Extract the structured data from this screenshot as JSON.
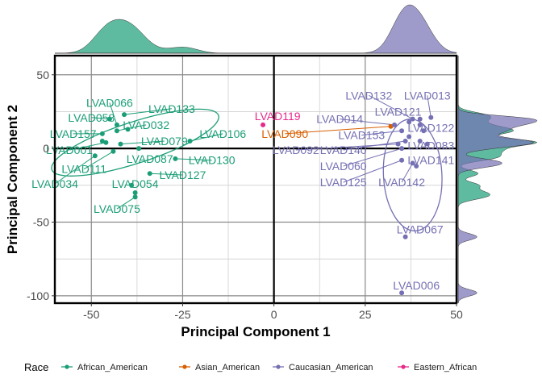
{
  "chart_data": {
    "type": "scatter",
    "xlabel": "Principal Component 1",
    "ylabel": "Principal Component 2",
    "xlim": [
      -60,
      50
    ],
    "ylim": [
      -105,
      63
    ],
    "x_ticks": [
      -50,
      -25,
      0,
      25,
      50
    ],
    "x_tick_labels": [
      "-50",
      "-25",
      "0",
      "25",
      "50"
    ],
    "y_ticks": [
      -100,
      -50,
      0,
      50
    ],
    "y_tick_labels": [
      "-100",
      "-50",
      "0",
      "50"
    ],
    "grid": true,
    "legend": {
      "title": "Race",
      "position": "bottom",
      "entries": [
        {
          "name": "African_American",
          "color": "#1b9e77"
        },
        {
          "name": "Asian_American",
          "color": "#d95f02"
        },
        {
          "name": "Caucasian_American",
          "color": "#7570b3"
        },
        {
          "name": "Eastern_African",
          "color": "#e7298a"
        }
      ]
    },
    "marginal_density": {
      "top": true,
      "right": true
    },
    "ellipses": [
      {
        "group": "African_American",
        "cx": -38,
        "cy": 4,
        "rx": 24,
        "ry": 14,
        "angle_deg": -18
      },
      {
        "group": "Caucasian_American",
        "cx": 38,
        "cy": -18,
        "rx": 8,
        "ry": 38,
        "angle_deg": -3
      }
    ],
    "series": [
      {
        "name": "African_American",
        "color": "#1b9e77",
        "points": [
          {
            "label": "LVAD066",
            "x": -43,
            "y": 16,
            "lx": -45,
            "ly": 31
          },
          {
            "label": "LVAD133",
            "x": -41,
            "y": 23,
            "lx": -28,
            "ly": 27
          },
          {
            "label": "LVAD058",
            "x": -45,
            "y": 20,
            "lx": -50,
            "ly": 21
          },
          {
            "label": "LVAD032",
            "x": -43,
            "y": 12,
            "lx": -35,
            "ly": 16
          },
          {
            "label": "LVAD157",
            "x": -47,
            "y": 10,
            "lx": -55,
            "ly": 10
          },
          {
            "label": "LVAD106",
            "x": -23,
            "y": 5,
            "lx": -14,
            "ly": 10
          },
          {
            "label": "LVAD079",
            "x": -42,
            "y": 3,
            "lx": -30,
            "ly": 5
          },
          {
            "label": "LVAD001",
            "x": -46,
            "y": 4,
            "lx": -56,
            "ly": -1
          },
          {
            "label": "LVAD087",
            "x": -37,
            "y": 0,
            "lx": -34,
            "ly": -7
          },
          {
            "label": "LVAD130",
            "x": -27,
            "y": -7,
            "lx": -17,
            "ly": -8
          },
          {
            "label": "LVAD111",
            "x": -44,
            "y": -2,
            "lx": -52,
            "ly": -14
          },
          {
            "label": "LVAD127",
            "x": -34,
            "y": -17,
            "lx": -25,
            "ly": -18
          },
          {
            "label": "LVAD034",
            "x": -49,
            "y": -5,
            "lx": -60,
            "ly": -24
          },
          {
            "label": "LVAD054",
            "x": -39,
            "y": -25,
            "lx": -38,
            "ly": -24
          },
          {
            "label": "LVAD075",
            "x": -38,
            "y": -33,
            "lx": -43,
            "ly": -41
          },
          {
            "label": "",
            "x": -40,
            "y": 13,
            "lx": null,
            "ly": null
          },
          {
            "label": "",
            "x": -47,
            "y": 5,
            "lx": null,
            "ly": null
          },
          {
            "label": "",
            "x": -38,
            "y": -30,
            "lx": null,
            "ly": null
          }
        ]
      },
      {
        "name": "Asian_American",
        "color": "#d95f02",
        "points": [
          {
            "label": "LVAD090",
            "x": 32,
            "y": 15,
            "lx": 3,
            "ly": 10
          }
        ]
      },
      {
        "name": "Caucasian_American",
        "color": "#7570b3",
        "points": [
          {
            "label": "LVAD132",
            "x": 38,
            "y": 20,
            "lx": 26,
            "ly": 36
          },
          {
            "label": "LVAD013",
            "x": 43,
            "y": 21,
            "lx": 42,
            "ly": 36
          },
          {
            "label": "LVAD121",
            "x": 37,
            "y": 18,
            "lx": 34,
            "ly": 25
          },
          {
            "label": "LVAD014",
            "x": 33,
            "y": 16,
            "lx": 18,
            "ly": 20
          },
          {
            "label": "LVAD122",
            "x": 40,
            "y": 16,
            "lx": 43,
            "ly": 14
          },
          {
            "label": "LVAD153",
            "x": 35,
            "y": 12,
            "lx": 24,
            "ly": 9
          },
          {
            "label": "LVAD092",
            "x": 34,
            "y": 3,
            "lx": 6,
            "ly": -1
          },
          {
            "label": "LVAD140",
            "x": 36,
            "y": 5,
            "lx": 19,
            "ly": -1
          },
          {
            "label": "LVAD083",
            "x": 42,
            "y": 3,
            "lx": 43,
            "ly": 2
          },
          {
            "label": "LVAD060",
            "x": 35,
            "y": 0,
            "lx": 19,
            "ly": -12
          },
          {
            "label": "LVAD141",
            "x": 39,
            "y": -12,
            "lx": 43,
            "ly": -8
          },
          {
            "label": "LVAD125",
            "x": 35,
            "y": -8,
            "lx": 19,
            "ly": -23
          },
          {
            "label": "LVAD142",
            "x": 38,
            "y": -10,
            "lx": 35,
            "ly": -23
          },
          {
            "label": "LVAD067",
            "x": 36,
            "y": -60,
            "lx": 40,
            "ly": -55
          },
          {
            "label": "LVAD006",
            "x": 35,
            "y": -98,
            "lx": 39,
            "ly": -93
          },
          {
            "label": "",
            "x": 40,
            "y": 20,
            "lx": null,
            "ly": null
          },
          {
            "label": "",
            "x": 41,
            "y": 12,
            "lx": null,
            "ly": null
          },
          {
            "label": "",
            "x": 37,
            "y": 8,
            "lx": null,
            "ly": null
          },
          {
            "label": "",
            "x": 40,
            "y": 5,
            "lx": null,
            "ly": null
          }
        ]
      },
      {
        "name": "Eastern_African",
        "color": "#e7298a",
        "points": [
          {
            "label": "LVAD119",
            "x": -3,
            "y": 16,
            "lx": 1,
            "ly": 22
          }
        ]
      }
    ]
  }
}
